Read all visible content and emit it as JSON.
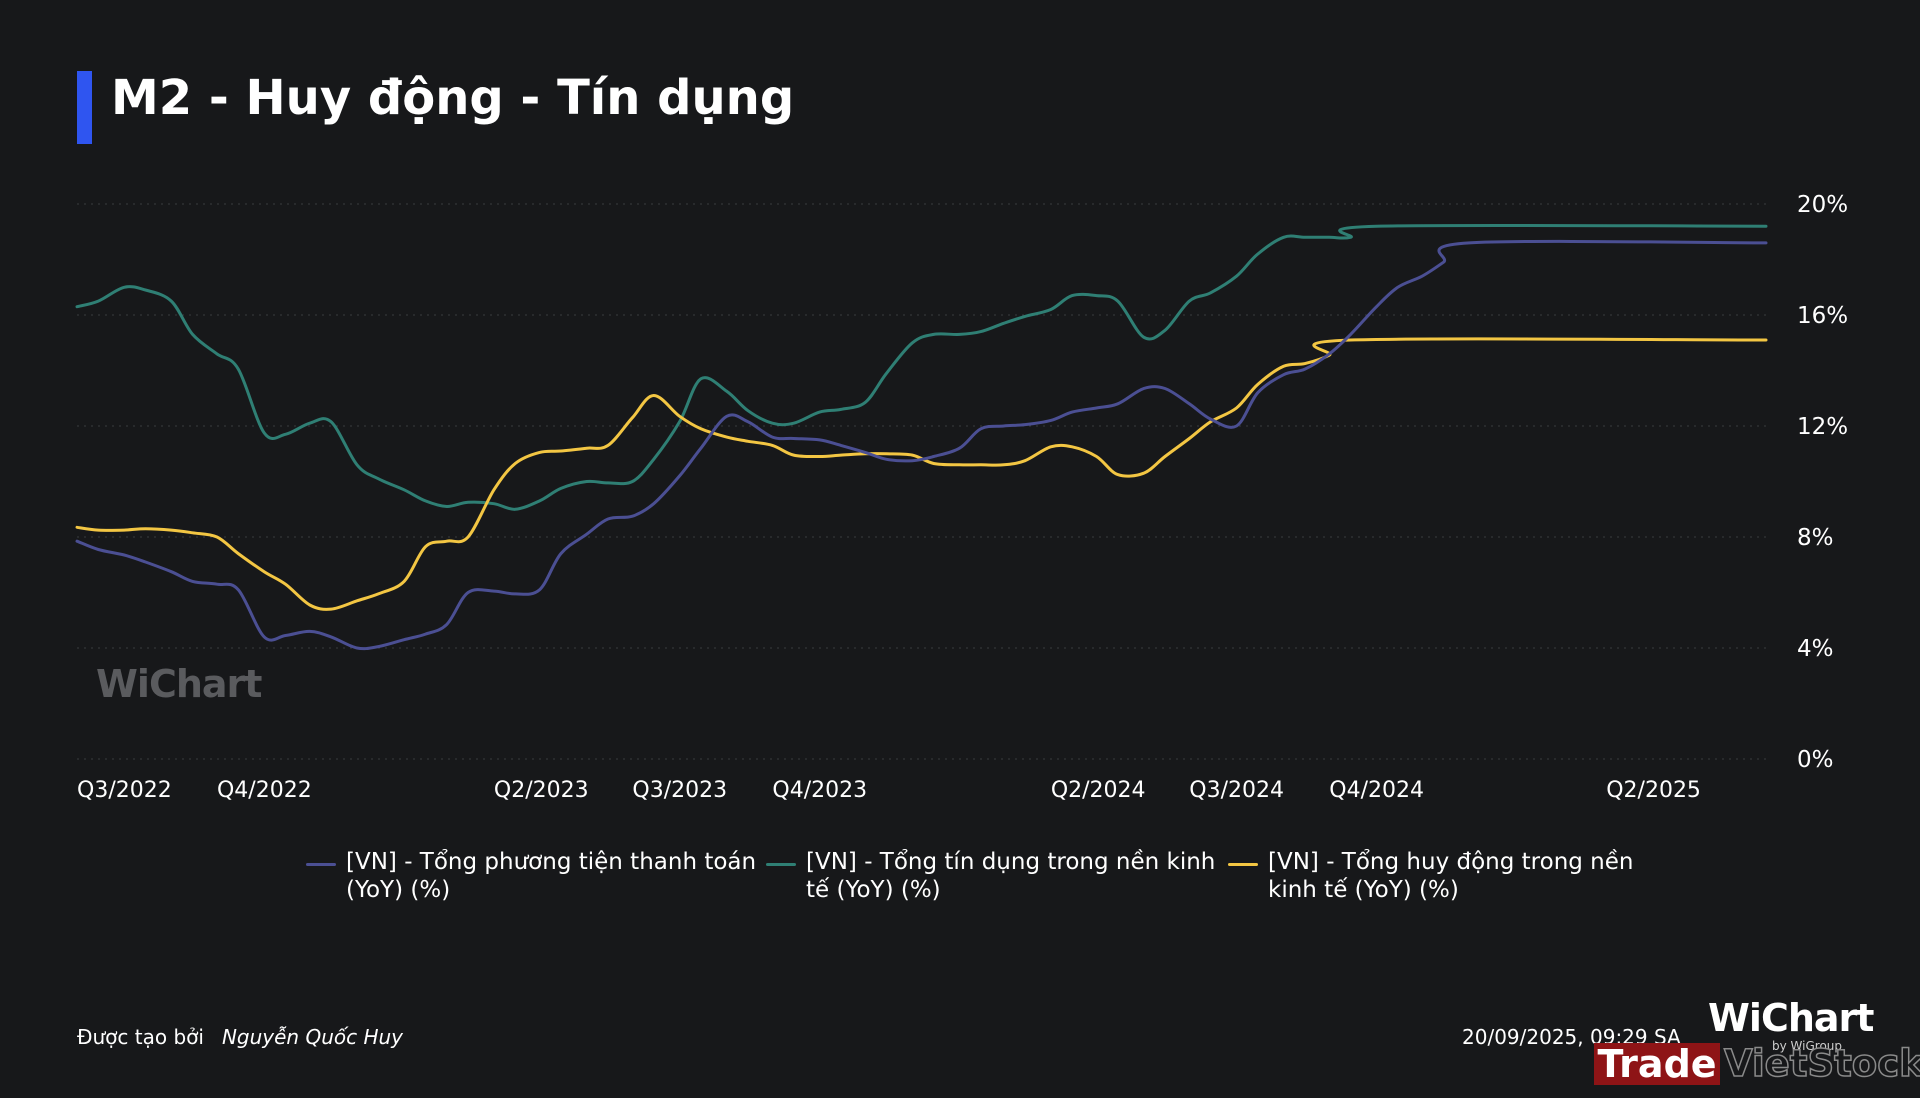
{
  "title": "M2 - Huy động - Tín dụng",
  "accent_color": "#2f55f0",
  "chart_data": {
    "type": "line",
    "x": [
      "2022-07-01",
      "2022-07-15",
      "2022-08-01",
      "2022-08-15",
      "2022-09-01",
      "2022-09-15",
      "2022-10-01",
      "2022-10-15",
      "2022-11-01",
      "2022-11-15",
      "2022-12-01",
      "2022-12-15",
      "2023-01-01",
      "2023-01-15",
      "2023-02-01",
      "2023-02-15",
      "2023-03-01",
      "2023-03-15",
      "2023-04-01",
      "2023-04-15",
      "2023-05-01",
      "2023-05-15",
      "2023-06-01",
      "2023-06-15",
      "2023-07-01",
      "2023-07-15",
      "2023-08-01",
      "2023-08-15",
      "2023-09-01",
      "2023-09-15",
      "2023-10-01",
      "2023-10-15",
      "2023-11-01",
      "2023-11-15",
      "2023-12-01",
      "2023-12-15",
      "2024-01-01",
      "2024-01-15",
      "2024-02-01",
      "2024-02-15",
      "2024-03-01",
      "2024-03-15",
      "2024-04-01",
      "2024-04-15",
      "2024-05-01",
      "2024-05-15",
      "2024-06-01",
      "2024-06-15",
      "2024-07-01",
      "2024-07-15",
      "2024-08-01",
      "2024-08-15",
      "2024-09-01",
      "2024-09-15",
      "2024-10-01",
      "2024-10-15",
      "2024-11-01",
      "2024-11-15",
      "2024-12-01",
      "2024-12-15",
      "2025-01-01",
      "2025-01-15",
      "2025-02-01",
      "2025-02-15",
      "2025-03-01",
      "2025-03-15",
      "2025-04-01",
      "2025-04-15",
      "2025-05-01",
      "2025-05-15",
      "2025-06-01",
      "2025-06-15",
      "2025-07-01",
      "2025-07-15"
    ],
    "series": [
      {
        "name": "[VN] - Tổng phương tiện thanh toán (YoY) (%)",
        "color": "#4b4f93",
        "values": [
          7.85,
          7.55,
          7.35,
          7.1,
          6.75,
          6.4,
          6.3,
          6.1,
          4.4,
          4.45,
          4.6,
          4.4,
          4.0,
          4.05,
          4.3,
          4.5,
          4.85,
          6.0,
          6.05,
          5.95,
          6.1,
          7.4,
          8.1,
          8.65,
          8.75,
          9.2,
          10.2,
          11.2,
          12.35,
          12.15,
          11.6,
          11.55,
          11.5,
          11.3,
          11.05,
          10.8,
          10.75,
          10.9,
          11.2,
          11.9,
          12.0,
          12.05,
          12.2,
          12.5,
          12.65,
          12.8,
          13.35,
          13.35,
          12.8,
          12.25,
          12.0,
          13.2,
          13.85,
          14.05,
          14.6,
          15.3,
          16.3,
          17.0,
          17.4,
          17.9,
          18.6,
          18.6,
          18.6,
          18.6,
          18.6,
          18.6,
          18.6,
          18.6,
          18.6,
          18.6,
          18.6,
          18.6,
          18.6,
          18.6
        ]
      },
      {
        "name": "[VN] - Tổng tín dụng trong nền kinh tế (YoY) (%)",
        "color": "#2f7f74",
        "values": [
          16.3,
          16.5,
          17.0,
          16.9,
          16.5,
          15.3,
          14.6,
          14.05,
          11.75,
          11.7,
          12.1,
          12.15,
          10.6,
          10.1,
          9.7,
          9.3,
          9.1,
          9.25,
          9.2,
          9.0,
          9.3,
          9.75,
          10.0,
          9.95,
          10.0,
          10.8,
          12.15,
          13.7,
          13.25,
          12.55,
          12.1,
          12.1,
          12.5,
          12.6,
          12.85,
          13.9,
          15.0,
          15.3,
          15.3,
          15.4,
          15.7,
          15.95,
          16.2,
          16.7,
          16.7,
          16.5,
          15.2,
          15.45,
          16.5,
          16.8,
          17.4,
          18.2,
          18.8,
          18.8,
          18.8,
          18.8,
          19.2,
          19.2,
          19.2,
          19.2,
          19.2,
          19.2,
          19.2,
          19.2,
          19.2,
          19.2,
          19.2,
          19.2,
          19.2,
          19.2,
          19.2,
          19.2,
          19.2,
          19.2
        ]
      },
      {
        "name": "[VN] - Tổng huy động trong nền kinh tế (YoY) (%)",
        "color": "#f3c643",
        "values": [
          8.35,
          8.25,
          8.25,
          8.3,
          8.25,
          8.15,
          8.0,
          7.4,
          6.75,
          6.3,
          5.55,
          5.4,
          5.7,
          5.95,
          6.4,
          7.65,
          7.85,
          8.0,
          9.7,
          10.65,
          11.05,
          11.1,
          11.2,
          11.3,
          12.3,
          13.1,
          12.35,
          11.9,
          11.6,
          11.45,
          11.3,
          10.95,
          10.9,
          10.95,
          11.0,
          11.0,
          10.95,
          10.65,
          10.6,
          10.6,
          10.6,
          10.75,
          11.25,
          11.25,
          10.9,
          10.25,
          10.3,
          10.9,
          11.55,
          12.15,
          12.65,
          13.5,
          14.15,
          14.25,
          14.55,
          15.1,
          15.1,
          15.1,
          15.1,
          15.1,
          15.1,
          15.1,
          15.1,
          15.1,
          15.1,
          15.1,
          15.1,
          15.1,
          15.1,
          15.1,
          15.1,
          15.1,
          15.1,
          15.1
        ]
      }
    ],
    "x_tick_labels": [
      "Q3/2022",
      "Q4/2022",
      "Q2/2023",
      "Q3/2023",
      "Q4/2023",
      "Q2/2024",
      "Q3/2024",
      "Q4/2024",
      "Q2/2025"
    ],
    "x_tick_dates": [
      "2022-07-01",
      "2022-10-01",
      "2023-04-01",
      "2023-07-01",
      "2023-10-01",
      "2024-04-01",
      "2024-07-01",
      "2024-10-01",
      "2025-04-01"
    ],
    "y_tick_labels": [
      "0%",
      "4%",
      "8%",
      "12%",
      "16%",
      "20%"
    ],
    "y_ticks": [
      0,
      4,
      8,
      12,
      16,
      20
    ],
    "ylim": [
      0,
      20
    ],
    "y_axis_side": "right",
    "grid": "horizontal dotted",
    "legend_position": "bottom"
  },
  "watermark": "WiChart",
  "footer": {
    "created_by_label": "Được tạo bởi",
    "author": "Nguyễn Quốc Huy",
    "timestamp": "20/09/2025, 09:29 SA"
  },
  "logos": {
    "wichart": "WiChart",
    "wigroup": "by WiGroup",
    "trade": "Trade",
    "vietstock": "VietStock"
  }
}
